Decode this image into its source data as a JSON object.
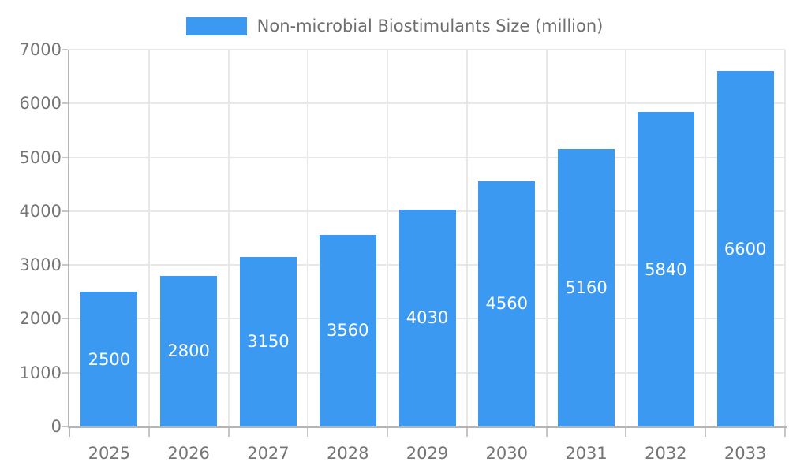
{
  "chart_data": {
    "type": "bar",
    "title": "",
    "legend_label": "Non-microbial Biostimulants Size (million)",
    "legend_position": "top",
    "categories": [
      "2025",
      "2026",
      "2027",
      "2028",
      "2029",
      "2030",
      "2031",
      "2032",
      "2033"
    ],
    "series": [
      {
        "name": "Non-microbial Biostimulants Size (million)",
        "values": [
          2500,
          2800,
          3150,
          3560,
          4030,
          4560,
          5160,
          5840,
          6600
        ]
      }
    ],
    "value_labels": [
      "2500",
      "2800",
      "3150",
      "3560",
      "4030",
      "4560",
      "5160",
      "5840",
      "6600"
    ],
    "xlabel": "",
    "ylabel": "",
    "ylim": [
      0,
      7000
    ],
    "ytick_step": 1000,
    "yticks": [
      "0",
      "1000",
      "2000",
      "3000",
      "4000",
      "5000",
      "6000",
      "7000"
    ],
    "grid": true,
    "colors": {
      "bar": "#3B99F2",
      "value_label": "#ffffff",
      "tick_label": "#757575",
      "legend_text": "#6e6e6e",
      "gridline": "#e8e8e8",
      "axis_line": "#b5b5b5",
      "tick_mark": "#c6c6c6",
      "background": "#ffffff"
    }
  }
}
